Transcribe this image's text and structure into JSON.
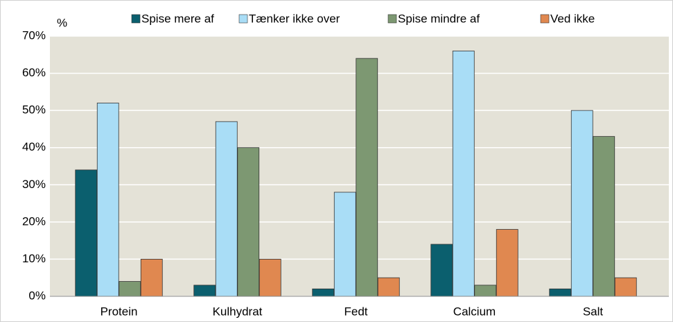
{
  "chart_data": {
    "type": "bar",
    "y_unit": "%",
    "categories": [
      "Protein",
      "Kulhydrat",
      "Fedt",
      "Calcium",
      "Salt"
    ],
    "series": [
      {
        "name": "Spise mere af",
        "color": "#0b5f6e",
        "values": [
          34,
          3,
          2,
          14,
          2
        ]
      },
      {
        "name": "Tænker ikke over",
        "color": "#a9ddf6",
        "values": [
          52,
          47,
          28,
          66,
          50
        ]
      },
      {
        "name": "Spise mindre af",
        "color": "#7d9872",
        "values": [
          4,
          40,
          64,
          3,
          43
        ]
      },
      {
        "name": "Ved ikke",
        "color": "#e08850",
        "values": [
          10,
          10,
          5,
          18,
          5
        ]
      }
    ],
    "ylim": [
      0,
      70
    ],
    "yticks": [
      {
        "value": 0,
        "label": "0%"
      },
      {
        "value": 10,
        "label": "10%"
      },
      {
        "value": 20,
        "label": "20%"
      },
      {
        "value": 30,
        "label": "30%"
      },
      {
        "value": 40,
        "label": "40%"
      },
      {
        "value": 50,
        "label": "50%"
      },
      {
        "value": 60,
        "label": "60%"
      },
      {
        "value": 70,
        "label": "70%"
      }
    ],
    "grid": true,
    "legend": "top"
  }
}
